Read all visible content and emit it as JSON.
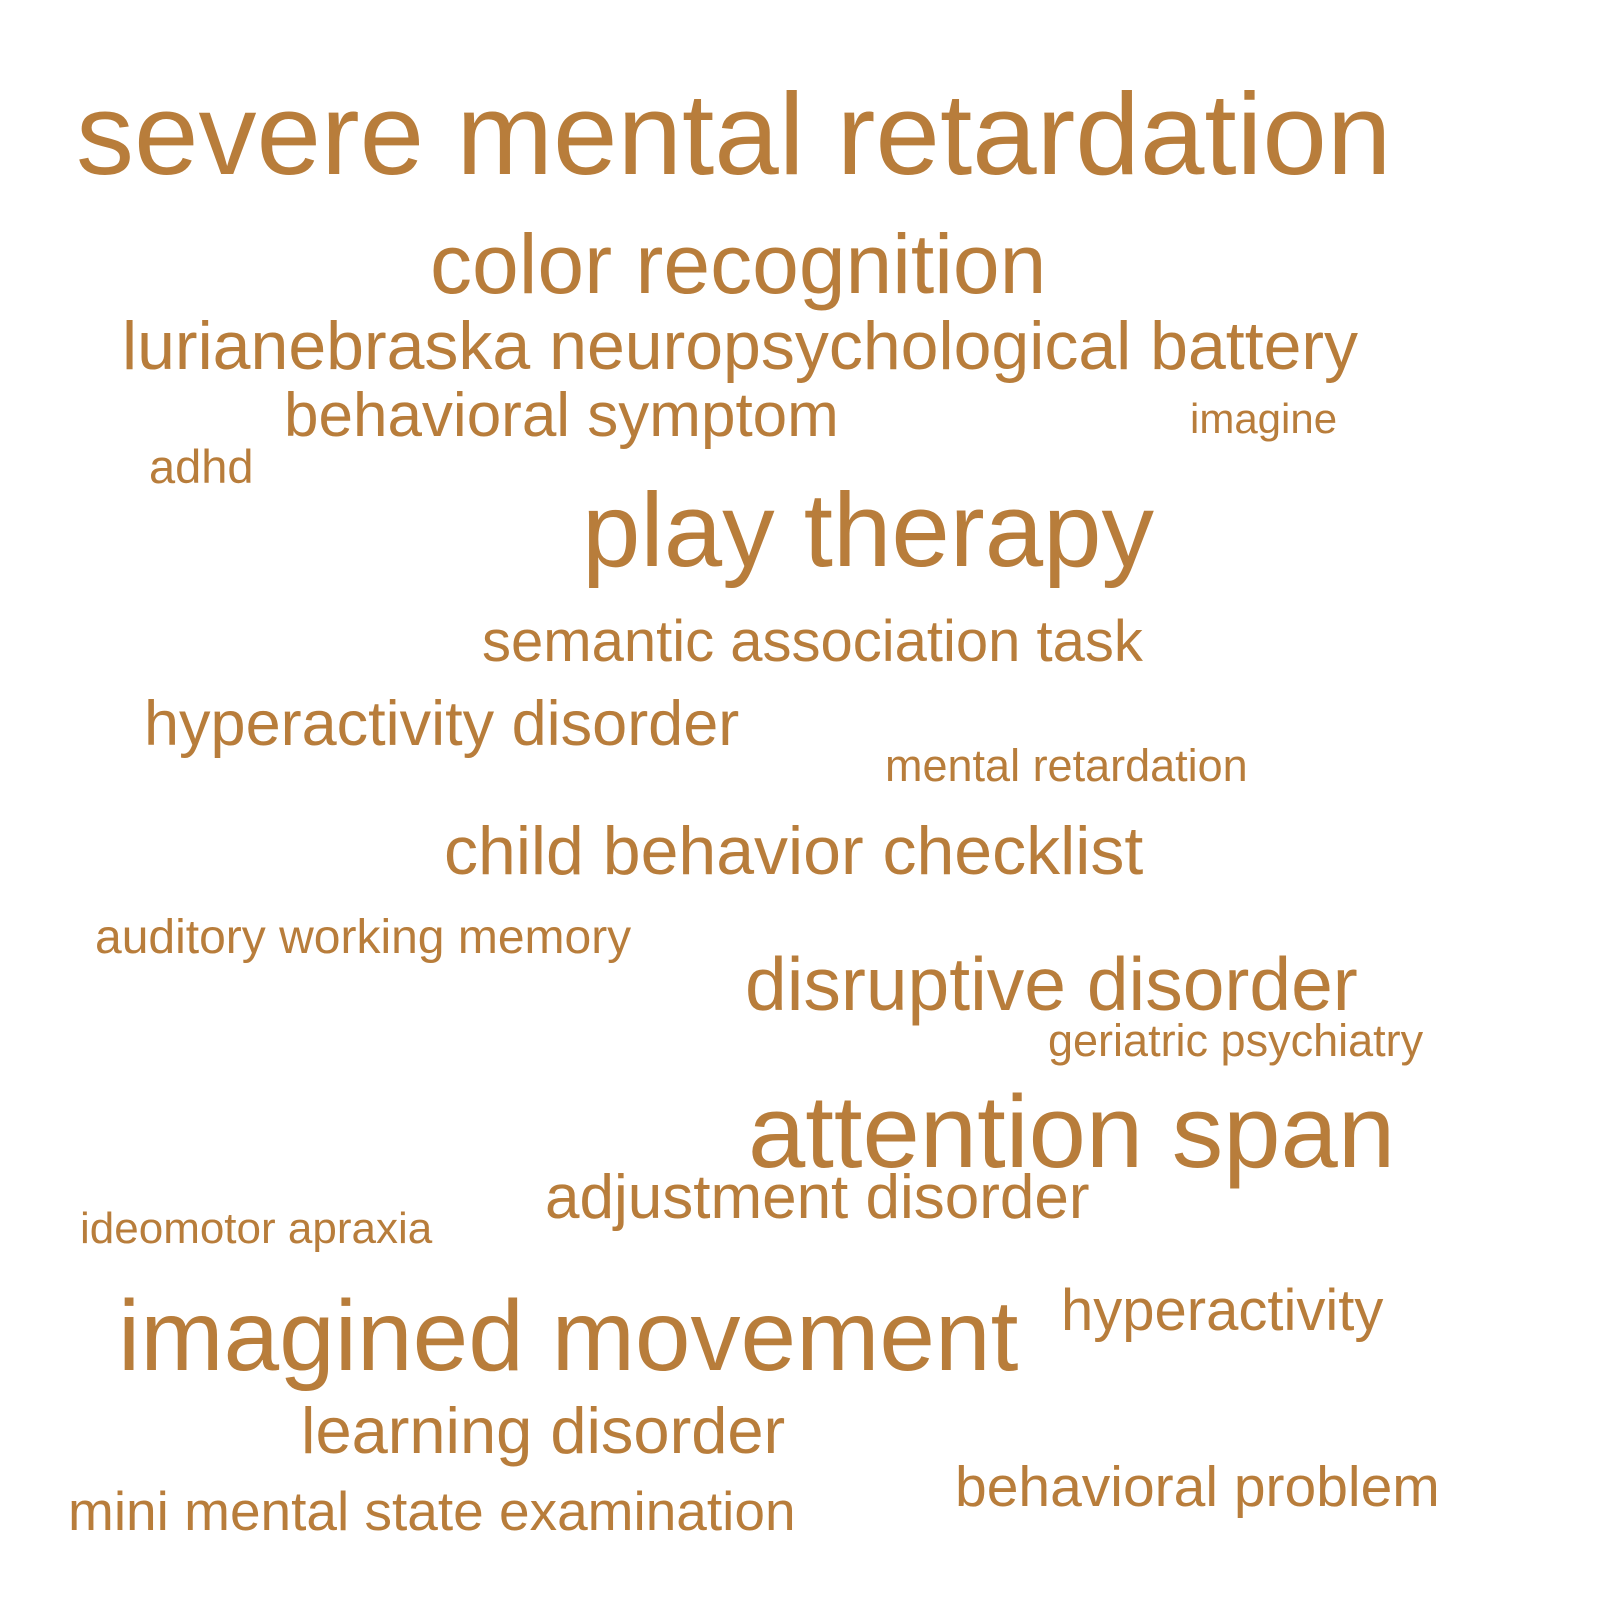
{
  "colors": {
    "background": "#ffffff",
    "word": "#b87d3b"
  },
  "words": [
    "severe mental retardation",
    "color recognition",
    "lurianebraska neuropsychological battery",
    "behavioral symptom",
    "imagine",
    "adhd",
    "play therapy",
    "semantic association task",
    "hyperactivity disorder",
    "mental retardation",
    "child behavior checklist",
    "auditory working memory",
    "disruptive disorder",
    "geriatric psychiatry",
    "attention span",
    "adjustment disorder",
    "ideomotor apraxia",
    "hyperactivity",
    "imagined movement",
    "learning disorder",
    "behavioral problem",
    "mini mental state examination"
  ]
}
